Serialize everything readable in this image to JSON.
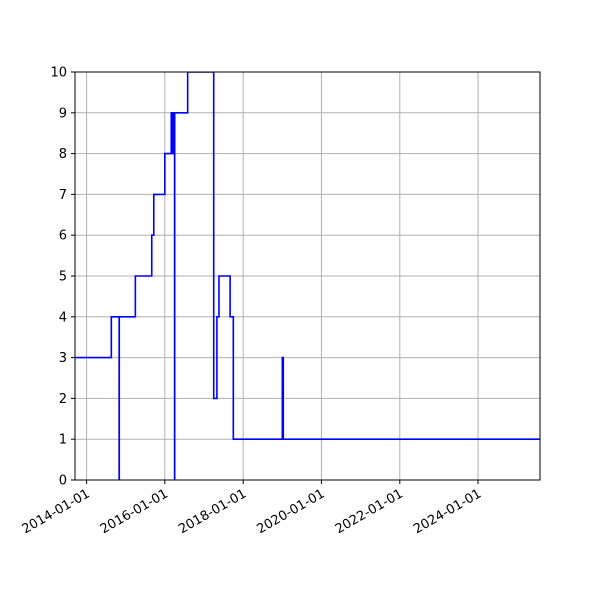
{
  "chart_data": {
    "type": "line",
    "title": "",
    "xlabel": "",
    "ylabel": "",
    "grid": true,
    "xlim": [
      "2013-09-15",
      "2025-08-01"
    ],
    "ylim": [
      0,
      10
    ],
    "x_ticks": [
      "2014-01-01",
      "2016-01-01",
      "2018-01-01",
      "2020-01-01",
      "2022-01-01",
      "2024-01-01"
    ],
    "y_ticks": [
      0,
      1,
      2,
      3,
      4,
      5,
      6,
      7,
      8,
      9,
      10
    ],
    "series": [
      {
        "color": "#0000ff",
        "step": "post",
        "points": [
          {
            "x": "2013-09-15",
            "y": 3
          },
          {
            "x": "2014-08-20",
            "y": 4
          },
          {
            "x": "2014-11-01",
            "y": 0
          },
          {
            "x": "2014-11-02",
            "y": 4
          },
          {
            "x": "2015-04-01",
            "y": 5
          },
          {
            "x": "2015-09-01",
            "y": 6
          },
          {
            "x": "2015-09-20",
            "y": 7
          },
          {
            "x": "2016-01-01",
            "y": 8
          },
          {
            "x": "2016-03-01",
            "y": 9
          },
          {
            "x": "2016-03-10",
            "y": 8
          },
          {
            "x": "2016-03-20",
            "y": 9
          },
          {
            "x": "2016-04-01",
            "y": 0
          },
          {
            "x": "2016-04-02",
            "y": 9
          },
          {
            "x": "2016-08-01",
            "y": 10
          },
          {
            "x": "2017-04-01",
            "y": 2
          },
          {
            "x": "2017-05-01",
            "y": 4
          },
          {
            "x": "2017-05-20",
            "y": 5
          },
          {
            "x": "2017-09-01",
            "y": 4
          },
          {
            "x": "2017-10-01",
            "y": 1
          },
          {
            "x": "2019-01-01",
            "y": 3
          },
          {
            "x": "2019-01-10",
            "y": 1
          },
          {
            "x": "2025-08-01",
            "y": 1
          }
        ]
      }
    ]
  }
}
